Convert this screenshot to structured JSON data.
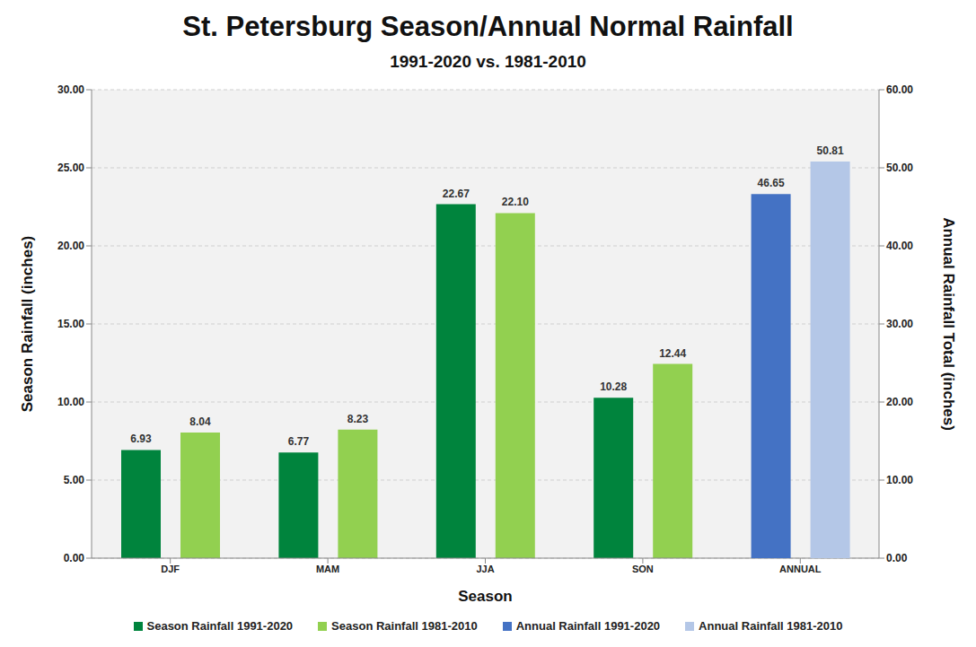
{
  "chart_data": {
    "type": "bar",
    "title": "St. Petersburg Season/Annual Normal Rainfall",
    "subtitle": "1991-2020 vs. 1981-2010",
    "x_label": "Season",
    "y_label": "Season Rainfall (inches)",
    "y2_label": "Annual Rainfall Total (inches)",
    "categories": [
      "DJF",
      "MAM",
      "JJA",
      "SON",
      "ANNUAL"
    ],
    "series": [
      {
        "name": "Season Rainfall 1991-2020",
        "color": "#00843d",
        "values": [
          6.93,
          6.77,
          22.67,
          10.28,
          null
        ],
        "value_labels": [
          "6.93",
          "6.77",
          "22.67",
          "10.28",
          null
        ]
      },
      {
        "name": "Season Rainfall 1981-2010",
        "color": "#92d050",
        "values": [
          8.04,
          8.23,
          22.1,
          12.44,
          null
        ],
        "value_labels": [
          "8.04",
          "8.23",
          "22.10",
          "12.44",
          null
        ]
      },
      {
        "name": "Annual Rainfall 1991-2020",
        "color": "#4472c4",
        "axis": "y2",
        "values": [
          null,
          null,
          null,
          null,
          46.65
        ],
        "value_labels": [
          null,
          null,
          null,
          null,
          "46.65"
        ]
      },
      {
        "name": "Annual Rainfall 1981-2010",
        "color": "#b4c7e7",
        "axis": "y2",
        "values": [
          null,
          null,
          null,
          null,
          50.81
        ],
        "value_labels": [
          null,
          null,
          null,
          null,
          "50.81"
        ]
      }
    ],
    "ylim": [
      0,
      30
    ],
    "yticks": [
      {
        "value": 0,
        "label": "0.00"
      },
      {
        "value": 5,
        "label": "5.00"
      },
      {
        "value": 10,
        "label": "10.00"
      },
      {
        "value": 15,
        "label": "15.00"
      },
      {
        "value": 20,
        "label": "20.00"
      },
      {
        "value": 25,
        "label": "25.00"
      },
      {
        "value": 30,
        "label": "30.00"
      }
    ],
    "y2lim": [
      0,
      60
    ],
    "y2ticks": [
      {
        "value": 0,
        "label": "0.00"
      },
      {
        "value": 10,
        "label": "10.00"
      },
      {
        "value": 20,
        "label": "20.00"
      },
      {
        "value": 30,
        "label": "30.00"
      },
      {
        "value": 40,
        "label": "40.00"
      },
      {
        "value": 50,
        "label": "50.00"
      },
      {
        "value": 60,
        "label": "60.00"
      }
    ],
    "grid": true,
    "legend": "bottom",
    "data_labels": true
  }
}
